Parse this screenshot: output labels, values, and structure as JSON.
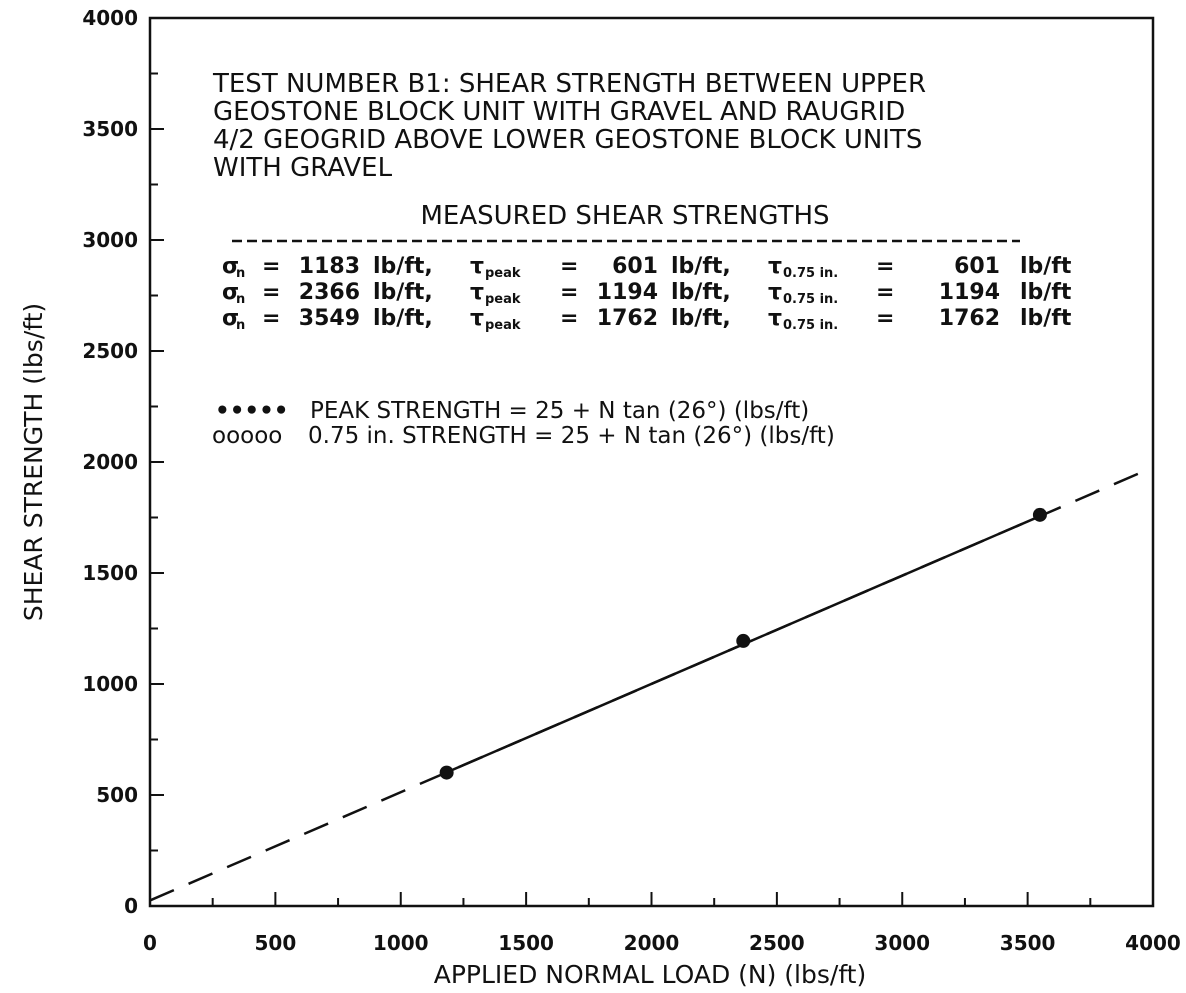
{
  "chart_data": {
    "type": "scatter",
    "title_lines": [
      "TEST NUMBER B1: SHEAR STRENGTH BETWEEN UPPER",
      "GEOSTONE BLOCK UNIT WITH GRAVEL AND RAUGRID",
      "4/2 GEOGRID ABOVE LOWER GEOSTONE BLOCK UNITS",
      "WITH GRAVEL"
    ],
    "xlabel": "APPLIED NORMAL LOAD (N) (lbs/ft)",
    "ylabel": "SHEAR STRENGTH (lbs/ft)",
    "xlim": [
      0,
      4000
    ],
    "ylim": [
      0,
      4000
    ],
    "x_ticks": [
      0,
      500,
      1000,
      1500,
      2000,
      2500,
      3000,
      3500,
      4000
    ],
    "y_ticks": [
      0,
      500,
      1000,
      1500,
      2000,
      2500,
      3000,
      3500,
      4000
    ],
    "grid": false,
    "table": {
      "heading": "MEASURED SHEAR STRENGTHS",
      "symbols": {
        "sigma": "σ",
        "sigma_sub": "n",
        "tau": "τ",
        "peak_sub": "peak",
        "disp_sub": "0.75 in.",
        "equals": "=",
        "unit": "lb/ft,",
        "unit_end": "lb/ft"
      },
      "rows": [
        {
          "sigma_n": "1183",
          "tau_peak": "601",
          "tau_075": "601"
        },
        {
          "sigma_n": "2366",
          "tau_peak": "1194",
          "tau_075": "1194"
        },
        {
          "sigma_n": "3549",
          "tau_peak": "1762",
          "tau_075": "1762"
        }
      ]
    },
    "legend": [
      {
        "marker": "•••••",
        "label": "PEAK STRENGTH = 25 +  N tan (26°) (lbs/ft)"
      },
      {
        "marker": "ooooo",
        "label": "0.75 in. STRENGTH = 25 + N tan (26°) (lbs/ft)"
      }
    ],
    "series": [
      {
        "points": [
          {
            "x": 1183,
            "y": 601
          },
          {
            "x": 2366,
            "y": 1194
          },
          {
            "x": 3549,
            "y": 1762
          }
        ],
        "fit": {
          "intercept": 25,
          "angle_deg": 26
        }
      }
    ]
  }
}
